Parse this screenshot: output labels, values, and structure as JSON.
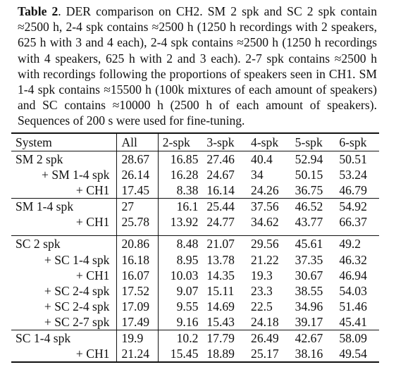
{
  "caption": {
    "label": "Table 2",
    "text": ". DER comparison on CH2.  SM 2 spk and SC 2 spk contain ≈2500 h, 2-4 spk contains ≈2500 h (1250 h recordings with 2 speakers, 625 h with 3 and 4 each), 2-4 spk contains ≈2500 h (1250 h recordings with 4 speakers, 625 h with 2 and 3 each).  2-7 spk contains ≈2500 h with recordings following the proportions of speakers seen in CH1.  SM 1-4 spk contains ≈15500 h (100k mixtures of each amount of speakers) and SC contains ≈10000 h (2500 h of each amount of speakers). Sequences of 200 s were used for fine-tuning."
  },
  "table": {
    "headers": [
      "System",
      "All",
      "2-spk",
      "3-spk",
      "4-spk",
      "5-spk",
      "6-spk"
    ],
    "group1": [
      {
        "system": "SM 2 spk",
        "indent": false,
        "values": [
          "28.67",
          "16.85",
          "27.46",
          "40.4",
          "52.94",
          "50.51"
        ]
      },
      {
        "system": "+ SM 1-4 spk",
        "indent": true,
        "values": [
          "26.14",
          "16.28",
          "24.67",
          "34",
          "50.15",
          "53.24"
        ]
      },
      {
        "system": "+ CH1",
        "indent": true,
        "values": [
          "17.45",
          "8.38",
          "16.14",
          "24.26",
          "36.75",
          "46.79"
        ]
      },
      {
        "system": "SM 1-4 spk",
        "indent": false,
        "values": [
          "27",
          "16.1",
          "25.44",
          "37.56",
          "46.52",
          "54.92"
        ]
      },
      {
        "system": "+ CH1",
        "indent": true,
        "values": [
          "25.78",
          "13.92",
          "24.77",
          "34.62",
          "43.77",
          "66.37"
        ]
      }
    ],
    "group2": [
      {
        "system": "SC 2 spk",
        "indent": false,
        "values": [
          "20.86",
          "8.48",
          "21.07",
          "29.56",
          "45.61",
          "49.2"
        ]
      },
      {
        "system": "+ SC 1-4 spk",
        "indent": true,
        "values": [
          "16.18",
          "8.95",
          "13.78",
          "21.22",
          "37.35",
          "46.32"
        ]
      },
      {
        "system": "+ CH1",
        "indent": true,
        "values": [
          "16.07",
          "10.03",
          "14.35",
          "19.3",
          "30.67",
          "46.94"
        ]
      },
      {
        "system": "+ SC 2-4 spk",
        "indent": true,
        "values": [
          "17.52",
          "9.07",
          "15.11",
          "23.3",
          "38.55",
          "54.03"
        ]
      },
      {
        "system": "+ SC 2-4 spk",
        "indent": true,
        "values": [
          "17.09",
          "9.55",
          "14.69",
          "22.5",
          "34.96",
          "51.46"
        ]
      },
      {
        "system": "+ SC 2-7 spk",
        "indent": true,
        "values": [
          "17.49",
          "9.16",
          "15.43",
          "24.18",
          "39.17",
          "45.41"
        ]
      },
      {
        "system": "SC 1-4 spk",
        "indent": false,
        "values": [
          "19.9",
          "10.2",
          "17.79",
          "26.49",
          "42.67",
          "58.09"
        ]
      },
      {
        "system": "+ CH1",
        "indent": true,
        "values": [
          "21.24",
          "15.45",
          "18.89",
          "25.17",
          "38.16",
          "49.54"
        ]
      }
    ]
  }
}
